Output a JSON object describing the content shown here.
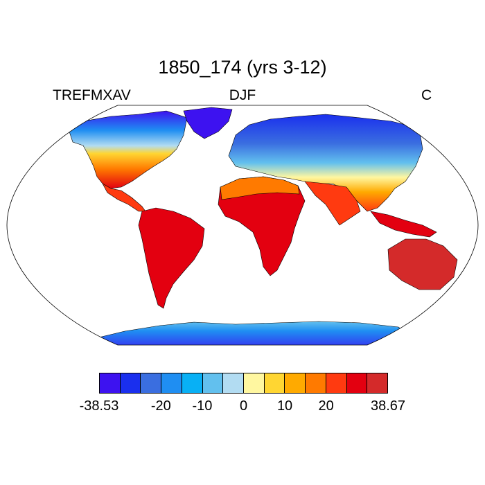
{
  "title": "1850_174 (yrs 3-12)",
  "left_string": "TREFMXAV",
  "center_string": "DJF",
  "right_string": "C",
  "map": {
    "projection": "robinson",
    "field": "2m max temperature (DJF mean)",
    "land_only": true
  },
  "colorbar": {
    "colors": [
      "#3d12f0",
      "#1a2fee",
      "#3a6ee0",
      "#1f8ef2",
      "#08b0f5",
      "#62c0ee",
      "#b2dcf2",
      "#fff7a0",
      "#ffd632",
      "#ffaa00",
      "#ff7a00",
      "#ff3a10",
      "#e30010",
      "#d42a2a"
    ],
    "labels": [
      {
        "text": "-38.53",
        "pos": 0
      },
      {
        "text": "-20",
        "pos": 3
      },
      {
        "text": "-10",
        "pos": 5
      },
      {
        "text": "0",
        "pos": 7
      },
      {
        "text": "10",
        "pos": 9
      },
      {
        "text": "20",
        "pos": 11
      },
      {
        "text": "38.67",
        "pos": 14
      }
    ]
  }
}
